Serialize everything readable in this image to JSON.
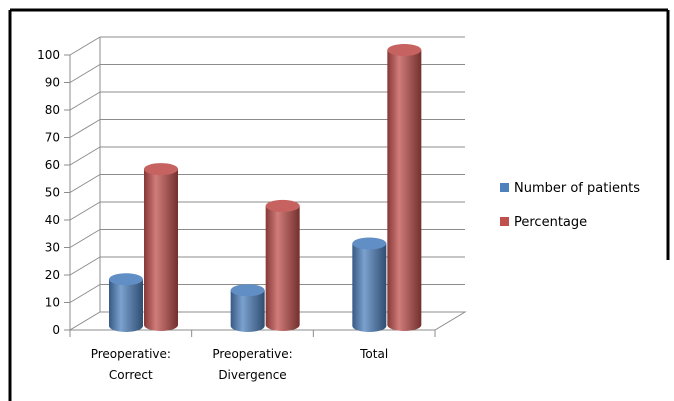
{
  "chart_data": {
    "type": "bar",
    "style": "3d-cylinder",
    "categories": [
      [
        "Preoperative:",
        "Correct"
      ],
      [
        "Preoperative:",
        "Divergence"
      ],
      [
        "Total"
      ]
    ],
    "series": [
      {
        "name": "Number of patients",
        "values": [
          17,
          13,
          30
        ],
        "color": "#4f81bd"
      },
      {
        "name": "Percentage",
        "values": [
          56.7,
          43.3,
          100
        ],
        "color": "#c0504d"
      }
    ],
    "ylim": [
      0,
      100
    ],
    "yticks": [
      0,
      10,
      20,
      30,
      40,
      50,
      60,
      70,
      80,
      90,
      100
    ],
    "grid": true,
    "legend_position": "right",
    "title": "",
    "xlabel": "",
    "ylabel": ""
  }
}
